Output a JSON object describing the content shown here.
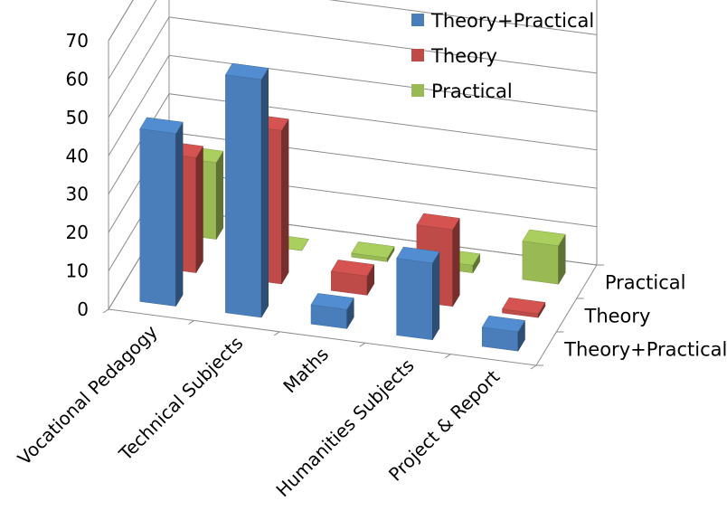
{
  "chart_data": {
    "type": "bar",
    "subtype": "3d-column",
    "title": "",
    "categories": [
      "Vocational Pedagogy",
      "Technical Subjects",
      "Maths",
      "Humanities Subjects",
      "Project & Report"
    ],
    "series": [
      {
        "name": "Theory+Practical",
        "values": [
          45,
          62,
          5,
          20,
          5
        ],
        "color": "#4a7ebb"
      },
      {
        "name": "Theory",
        "values": [
          30,
          40,
          5,
          20,
          1
        ],
        "color": "#be4b48"
      },
      {
        "name": "Practical",
        "values": [
          20,
          0,
          1,
          2,
          10
        ],
        "color": "#98b954"
      }
    ],
    "ylim": [
      0,
      70
    ],
    "yticks": [
      0,
      10,
      20,
      30,
      40,
      50,
      60,
      70
    ],
    "depth_labels": [
      "Theory+Practical",
      "Theory",
      "Practical"
    ],
    "legend": {
      "position": "top-right",
      "entries": [
        "Theory+Practical",
        "Theory",
        "Practical"
      ]
    },
    "grid": true
  }
}
